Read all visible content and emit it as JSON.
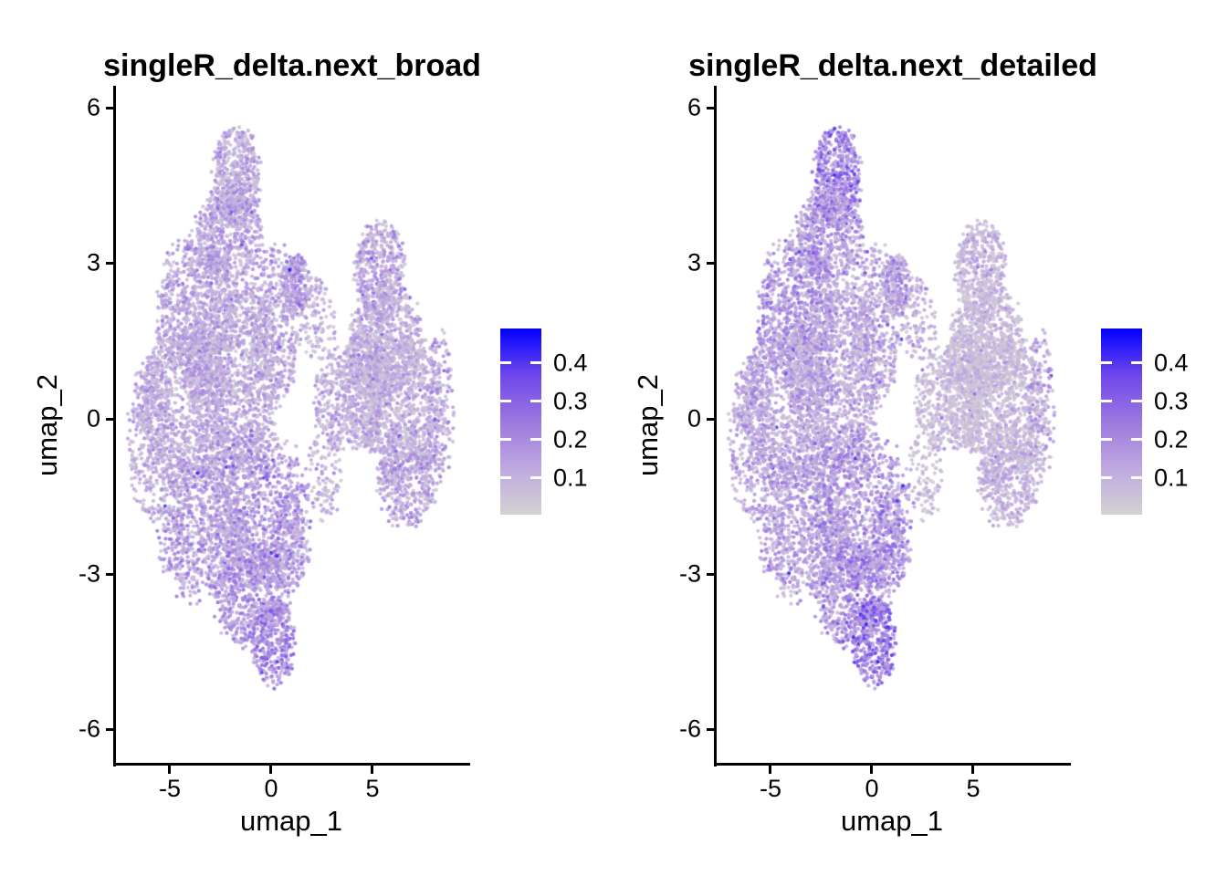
{
  "figure": {
    "background": "#FFFFFF"
  },
  "chart_data": {
    "type": "scatter",
    "style": "seurat-featureplot-umap",
    "seed": 11,
    "panels": [
      {
        "title": "singleR_delta.next_broad",
        "value_ranges": [
          [
            0.04,
            0.24
          ],
          [
            0.04,
            0.24
          ],
          [
            0.05,
            0.26
          ],
          [
            0.04,
            0.24
          ],
          [
            0.04,
            0.22
          ],
          [
            0.04,
            0.24
          ],
          [
            0.05,
            0.28
          ],
          [
            0.06,
            0.3
          ],
          [
            0.08,
            0.3
          ],
          [
            0.09,
            0.34
          ],
          [
            0.04,
            0.22
          ],
          [
            0.06,
            0.3
          ],
          [
            0.05,
            0.3
          ],
          [
            0.03,
            0.2
          ],
          [
            0.04,
            0.22
          ],
          [
            0.03,
            0.18
          ],
          [
            0.04,
            0.26
          ],
          [
            0.03,
            0.22
          ],
          [
            0.03,
            0.2
          ],
          [
            0.04,
            0.24
          ],
          [
            0.03,
            0.22
          ],
          [
            0.05,
            0.26
          ]
        ]
      },
      {
        "title": "singleR_delta.next_detailed",
        "value_ranges": [
          [
            0.1,
            0.4
          ],
          [
            0.06,
            0.3
          ],
          [
            0.06,
            0.3
          ],
          [
            0.05,
            0.26
          ],
          [
            0.04,
            0.24
          ],
          [
            0.04,
            0.24
          ],
          [
            0.05,
            0.26
          ],
          [
            0.06,
            0.3
          ],
          [
            0.08,
            0.34
          ],
          [
            0.13,
            0.44
          ],
          [
            0.04,
            0.24
          ],
          [
            0.08,
            0.34
          ],
          [
            0.05,
            0.3
          ],
          [
            0.03,
            0.18
          ],
          [
            0.02,
            0.14
          ],
          [
            0.02,
            0.14
          ],
          [
            0.03,
            0.18
          ],
          [
            0.02,
            0.14
          ],
          [
            0.02,
            0.14
          ],
          [
            0.03,
            0.18
          ],
          [
            0.02,
            0.14
          ],
          [
            0.05,
            0.24
          ]
        ]
      }
    ],
    "shared": {
      "xlabel": "umap_1",
      "ylabel": "umap_2",
      "x_ticks": [
        "-5",
        "0",
        "5"
      ],
      "y_ticks": [
        "6",
        "3",
        "0",
        "-3",
        "-6"
      ],
      "x_range": [
        -7.7,
        9.7
      ],
      "y_range": [
        -6.7,
        6.4
      ],
      "legend_ticks": [
        "0.4",
        "0.3",
        "0.2",
        "0.1"
      ],
      "color_scale": {
        "low_color": "#D3D3D3",
        "high_color": "#0000FF",
        "domain": [
          0,
          0.49
        ],
        "stops": [
          "#D3D3D3",
          "#BFA8E0",
          "#9C78DE",
          "#6F47EC",
          "#0000FF"
        ]
      },
      "point_radius_px": 2.1,
      "clusters": [
        {
          "id": "L1",
          "cx": -1.7,
          "cy": 4.65,
          "rx": 1.25,
          "ry": 1.05,
          "n": 500
        },
        {
          "id": "L2",
          "cx": -2.1,
          "cy": 3.55,
          "rx": 1.75,
          "ry": 0.95,
          "n": 550
        },
        {
          "id": "L3",
          "cx": -3.6,
          "cy": 2.1,
          "rx": 2.1,
          "ry": 1.5,
          "n": 900
        },
        {
          "id": "L4",
          "cx": -4.2,
          "cy": 0.2,
          "rx": 2.4,
          "ry": 1.7,
          "n": 950
        },
        {
          "id": "L5",
          "cx": -1.8,
          "cy": 0.8,
          "rx": 2.4,
          "ry": 2.0,
          "n": 1150
        },
        {
          "id": "L6",
          "cx": 0.2,
          "cy": 1.9,
          "rx": 1.35,
          "ry": 1.6,
          "n": 480
        },
        {
          "id": "L7",
          "cx": -3.4,
          "cy": -2.1,
          "rx": 2.3,
          "ry": 1.5,
          "n": 850
        },
        {
          "id": "L8",
          "cx": -0.6,
          "cy": -1.7,
          "rx": 2.6,
          "ry": 1.6,
          "n": 950
        },
        {
          "id": "L9",
          "cx": -1.0,
          "cy": -3.4,
          "rx": 1.9,
          "ry": 1.1,
          "n": 600
        },
        {
          "id": "L10",
          "cx": 0.1,
          "cy": -4.3,
          "rx": 1.15,
          "ry": 0.9,
          "n": 340
        },
        {
          "id": "L11",
          "cx": -5.9,
          "cy": -0.4,
          "rx": 1.15,
          "ry": 1.7,
          "n": 360
        },
        {
          "id": "L12",
          "cx": 1.0,
          "cy": -2.4,
          "rx": 0.95,
          "ry": 0.95,
          "n": 210
        },
        {
          "id": "M1",
          "cx": 1.25,
          "cy": 2.6,
          "rx": 0.8,
          "ry": 0.6,
          "n": 220
        },
        {
          "id": "M2",
          "cx": 2.3,
          "cy": 1.9,
          "rx": 0.95,
          "ry": 0.85,
          "n": 110
        },
        {
          "id": "M3",
          "cx": 3.3,
          "cy": 0.35,
          "rx": 1.25,
          "ry": 1.05,
          "n": 290
        },
        {
          "id": "M4",
          "cx": 2.7,
          "cy": -1.0,
          "rx": 0.85,
          "ry": 1.0,
          "n": 110
        },
        {
          "id": "R1",
          "cx": 5.35,
          "cy": 2.85,
          "rx": 1.3,
          "ry": 1.05,
          "n": 470
        },
        {
          "id": "R2",
          "cx": 5.6,
          "cy": 1.5,
          "rx": 1.9,
          "ry": 1.2,
          "n": 680
        },
        {
          "id": "R3",
          "cx": 6.4,
          "cy": 0.3,
          "rx": 2.2,
          "ry": 1.5,
          "n": 880
        },
        {
          "id": "R4",
          "cx": 6.7,
          "cy": -1.05,
          "rx": 1.6,
          "ry": 1.1,
          "n": 500
        },
        {
          "id": "R5",
          "cx": 4.6,
          "cy": 0.6,
          "rx": 1.25,
          "ry": 1.3,
          "n": 400
        },
        {
          "id": "R6",
          "cx": 8.3,
          "cy": 0.3,
          "rx": 0.7,
          "ry": 1.5,
          "n": 160
        }
      ]
    }
  }
}
